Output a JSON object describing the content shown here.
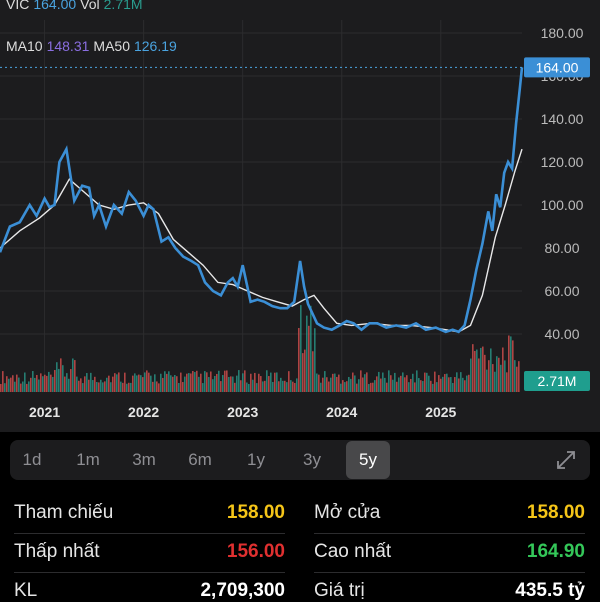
{
  "legend": {
    "symbol": "VIC",
    "price": "164.00",
    "vol_label": "Vol",
    "vol": "2.71M",
    "ma10_label": "MA10",
    "ma10": "148.31",
    "ma50_label": "MA50",
    "ma50": "126.19"
  },
  "colors": {
    "price_line": "#3b8fd6",
    "ma_line": "#ffffff",
    "up": "#2a9d8f",
    "down": "#e05252",
    "ma10": "#8a6ee0",
    "ma50": "#4aa3df",
    "yellow": "#f5c518",
    "red": "#e03030",
    "green": "#34c759"
  },
  "price_badge": "164.00",
  "volume_badge": "2.71M",
  "chart_data": {
    "type": "line",
    "title": "",
    "y_ticks": [
      "180.00",
      "160.00",
      "140.00",
      "120.00",
      "100.00",
      "80.00",
      "60.00",
      "40.00"
    ],
    "x_ticks": [
      "2021",
      "2022",
      "2023",
      "2024",
      "2025"
    ],
    "ylim": [
      30,
      180
    ],
    "x_range": [
      2020.55,
      2025.82
    ],
    "series": [
      {
        "name": "",
        "x": [
          2020.55,
          2020.65,
          2020.75,
          2020.85,
          2020.92,
          2021.0,
          2021.05,
          2021.1,
          2021.15,
          2021.22,
          2021.3,
          2021.38,
          2021.45,
          2021.5,
          2021.55,
          2021.62,
          2021.7,
          2021.78,
          2021.85,
          2021.92,
          2022.0,
          2022.05,
          2022.1,
          2022.18,
          2022.25,
          2022.32,
          2022.4,
          2022.48,
          2022.55,
          2022.62,
          2022.7,
          2022.78,
          2022.85,
          2022.9,
          2022.95,
          2023.0,
          2023.08,
          2023.15,
          2023.22,
          2023.3,
          2023.38,
          2023.45,
          2023.52,
          2023.58,
          2023.62,
          2023.66,
          2023.7,
          2023.75,
          2023.82,
          2023.9,
          2023.98,
          2024.05,
          2024.12,
          2024.2,
          2024.28,
          2024.36,
          2024.45,
          2024.55,
          2024.65,
          2024.75,
          2024.85,
          2024.95,
          2025.05,
          2025.12,
          2025.18,
          2025.24,
          2025.3,
          2025.36,
          2025.42,
          2025.48,
          2025.52,
          2025.56,
          2025.6,
          2025.64,
          2025.68,
          2025.72,
          2025.76,
          2025.8,
          2025.82
        ],
        "y": [
          78,
          90,
          92,
          100,
          95,
          103,
          99,
          100,
          120,
          126,
          102,
          109,
          108,
          95,
          100,
          90,
          100,
          96,
          106,
          102,
          95,
          100,
          98,
          83,
          85,
          80,
          76,
          74,
          72,
          64,
          60,
          58,
          64,
          66,
          62,
          72,
          55,
          56,
          55,
          53,
          52,
          52,
          55,
          74,
          62,
          54,
          50,
          45,
          43,
          42,
          44,
          46,
          45,
          42,
          45,
          45,
          43,
          44,
          43,
          45,
          42,
          43,
          41,
          42,
          41,
          44,
          56,
          70,
          82,
          97,
          88,
          105,
          99,
          115,
          120,
          117,
          138,
          155,
          164
        ],
        "color": "#3b8fd6"
      },
      {
        "name": "",
        "x": [
          2020.55,
          2020.75,
          2020.95,
          2021.1,
          2021.25,
          2021.4,
          2021.55,
          2021.7,
          2021.85,
          2022.0,
          2022.15,
          2022.3,
          2022.45,
          2022.6,
          2022.75,
          2022.9,
          2023.05,
          2023.2,
          2023.35,
          2023.5,
          2023.62,
          2023.72,
          2023.82,
          2023.95,
          2024.1,
          2024.3,
          2024.5,
          2024.7,
          2024.9,
          2025.05,
          2025.18,
          2025.3,
          2025.42,
          2025.55,
          2025.65,
          2025.75,
          2025.82
        ],
        "y": [
          80,
          88,
          94,
          100,
          112,
          106,
          100,
          98,
          100,
          101,
          96,
          84,
          78,
          72,
          64,
          63,
          60,
          57,
          55,
          53,
          56,
          58,
          52,
          45,
          44,
          45,
          44,
          44,
          43,
          42,
          41,
          44,
          58,
          85,
          100,
          116,
          126
        ],
        "color": "#ffffff"
      }
    ]
  },
  "timeframes": [
    "1d",
    "1m",
    "3m",
    "6m",
    "1y",
    "3y",
    "5y"
  ],
  "active_timeframe": "5y",
  "stats": {
    "ref_label": "Tham chiếu",
    "ref_value": "158.00",
    "open_label": "Mở cửa",
    "open_value": "158.00",
    "low_label": "Thấp nhất",
    "low_value": "156.00",
    "high_label": "Cao nhất",
    "high_value": "164.90",
    "volume_label": "KL",
    "volume_value": "2,709,300",
    "value_label": "Giá trị",
    "value_value": "435.5 tỷ"
  }
}
